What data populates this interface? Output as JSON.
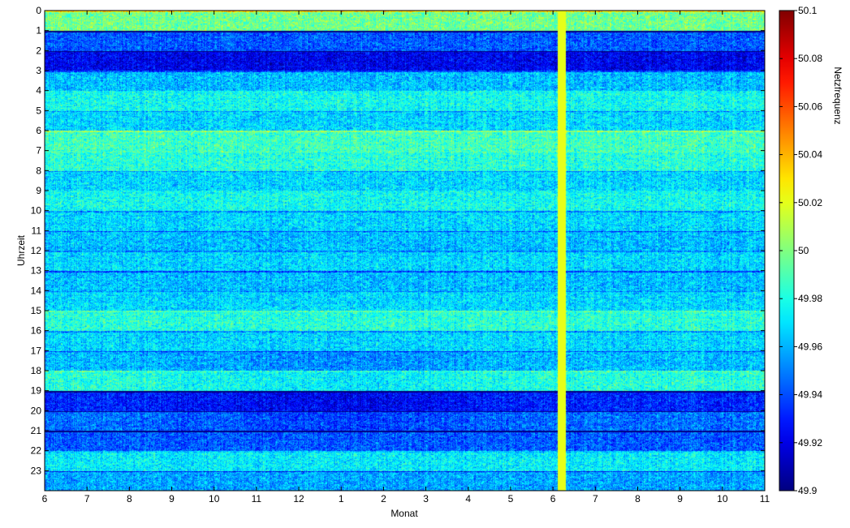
{
  "chart_data": {
    "type": "heatmap",
    "title": "",
    "xlabel": "Monat",
    "ylabel": "Uhrzeit",
    "colorbar_label": "Netzfrequenz",
    "x_tick_labels": [
      "6",
      "7",
      "8",
      "9",
      "10",
      "11",
      "12",
      "1",
      "2",
      "3",
      "4",
      "5",
      "6",
      "7",
      "8",
      "9",
      "10",
      "11"
    ],
    "y_tick_labels": [
      "0",
      "1",
      "2",
      "3",
      "4",
      "5",
      "6",
      "7",
      "8",
      "9",
      "10",
      "11",
      "12",
      "13",
      "14",
      "15",
      "16",
      "17",
      "18",
      "19",
      "20",
      "21",
      "22",
      "23"
    ],
    "y_range": [
      0,
      24
    ],
    "x_range_months": 17,
    "colorbar_range": [
      49.9,
      50.1
    ],
    "colorbar_tick_labels": [
      "49.9",
      "49.92",
      "49.94",
      "49.96",
      "49.98",
      "50",
      "50.02",
      "50.04",
      "50.06",
      "50.08",
      "50.1"
    ],
    "colormap": "jet",
    "colormap_colors": [
      "#00008f",
      "#0000ff",
      "#00ffff",
      "#ffff00",
      "#ff0000",
      "#800000"
    ],
    "hour_profile": [
      50.02,
      49.965,
      49.945,
      49.985,
      50.0,
      49.99,
      50.01,
      50.005,
      49.99,
      50.0,
      49.99,
      49.985,
      49.99,
      49.985,
      49.99,
      50.005,
      49.99,
      49.985,
      50.005,
      49.955,
      49.97,
      49.965,
      49.995,
      49.98
    ],
    "gap_month_position": 12.2,
    "gap_value": 50.02,
    "grid": false
  }
}
